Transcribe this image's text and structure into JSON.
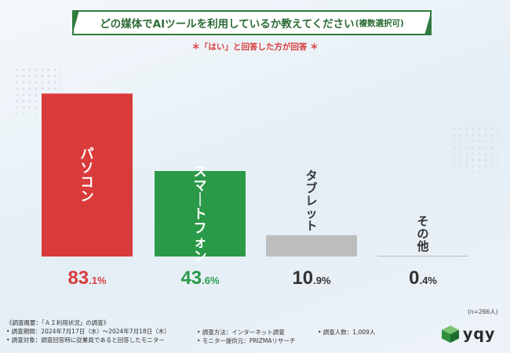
{
  "title": "どの媒体でAIツールを利用しているか教えてください",
  "title_suffix": "(複数選択可)",
  "subtitle": "＊「はい」と回答した方が回答 ＊",
  "chart_data": {
    "type": "bar",
    "title": "どの媒体でAIツールを利用しているか教えてください(複数選択可)",
    "categories": [
      "パソコン",
      "スマートフォン",
      "タブレット",
      "その他"
    ],
    "values": [
      83.1,
      43.6,
      10.9,
      0.4
    ],
    "value_labels": [
      {
        "int": "83",
        "dec": ".1%"
      },
      {
        "int": "43",
        "dec": ".6%"
      },
      {
        "int": "10",
        "dec": ".9%"
      },
      {
        "int": "0",
        "dec": ".4%"
      }
    ],
    "colors": [
      "#d93b3b",
      "#2a9a48",
      "#bdbdbd",
      "#bdbdbd"
    ],
    "label_colors": [
      "#d93b3b",
      "#2a9a48",
      "#333333",
      "#333333"
    ],
    "ylim": [
      0,
      100
    ],
    "xlabel": "",
    "ylabel": ""
  },
  "n_note": "(n=266人)",
  "footer": {
    "line1": "《調査概要：「ＡＩ利用状況」の調査》",
    "line2": "• 調査期間：2024年7月17日（水）～2024年7月18日（木）",
    "line3": "• 調査対象：調査回答時に従業員であると回答したモニター",
    "method": "• 調査方法：インターネット調査",
    "provider": "• モニター提供元：PRIZMAリサーチ",
    "count": "• 調査人数：1,009人"
  },
  "logo": "yqy"
}
